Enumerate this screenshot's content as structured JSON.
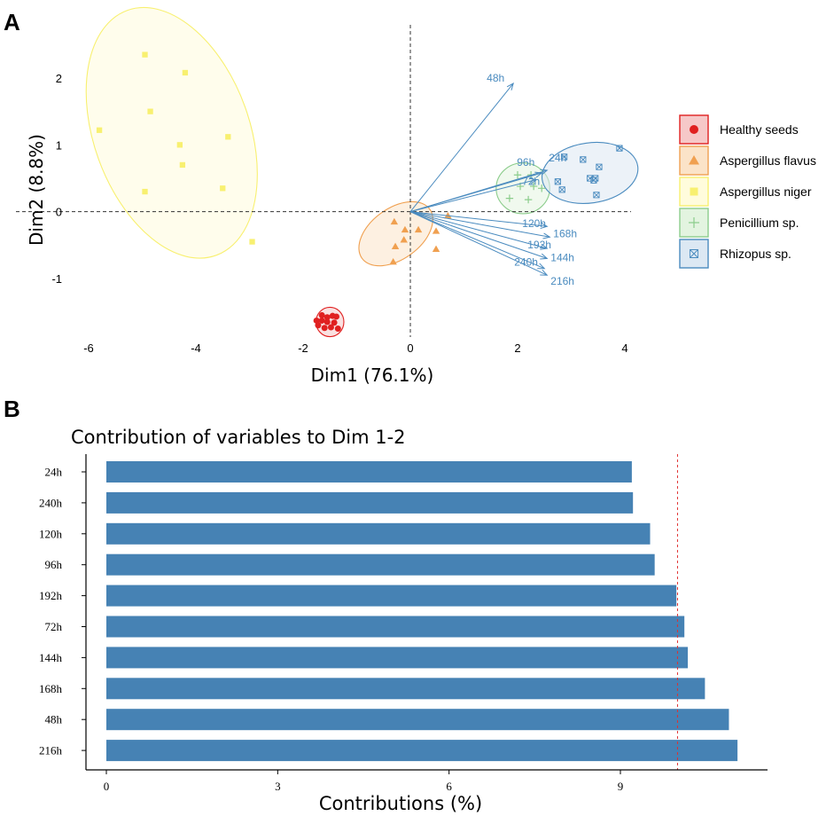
{
  "panel_a_label": "A",
  "panel_b_label": "B",
  "chart_data": [
    {
      "type": "scatter",
      "subtype": "pca-biplot",
      "xlabel": "Dim1 (76.1%)",
      "ylabel": "Dim2 (8.8%)",
      "xlim": [
        -6.4,
        4.6
      ],
      "ylim": [
        -2.0,
        2.55
      ],
      "xticks": [
        "-6",
        "-4",
        "-2",
        "0",
        "2",
        "4"
      ],
      "yticks": [
        "2",
        "1",
        "0",
        "-1"
      ],
      "xtick_values": [
        -6,
        -4,
        -2,
        0,
        2,
        4
      ],
      "ytick_values": [
        2,
        1,
        0,
        -1
      ],
      "legend_position": "right",
      "groups": [
        {
          "name": "Healthy seeds",
          "color": "#e02020",
          "fill": "#f6c8c8",
          "marker": "circle",
          "ellipse": {
            "cx": -1.5,
            "cy": -1.65,
            "rx": 0.26,
            "ry": 0.22,
            "angle": 0
          },
          "points": [
            [
              -1.65,
              -1.55
            ],
            [
              -1.55,
              -1.58
            ],
            [
              -1.45,
              -1.56
            ],
            [
              -1.38,
              -1.57
            ],
            [
              -1.72,
              -1.7
            ],
            [
              -1.6,
              -1.74
            ],
            [
              -1.48,
              -1.73
            ],
            [
              -1.35,
              -1.75
            ],
            [
              -1.65,
              -1.63
            ],
            [
              -1.42,
              -1.66
            ],
            [
              -1.55,
              -1.65
            ],
            [
              -1.75,
              -1.63
            ]
          ]
        },
        {
          "name": "Aspergillus flavus",
          "color": "#f0a050",
          "fill": "#fbe3c8",
          "marker": "triangle",
          "ellipse": {
            "cx": -0.27,
            "cy": -0.33,
            "rx": 0.78,
            "ry": 0.38,
            "angle": -36
          },
          "points": [
            [
              -0.3,
              -0.15
            ],
            [
              -0.1,
              -0.27
            ],
            [
              0.15,
              -0.27
            ],
            [
              0.48,
              -0.29
            ],
            [
              -0.12,
              -0.42
            ],
            [
              -0.28,
              -0.52
            ],
            [
              0.48,
              -0.56
            ],
            [
              -0.32,
              -0.75
            ],
            [
              0.7,
              -0.06
            ]
          ]
        },
        {
          "name": "Aspergillus niger",
          "color": "#f8f070",
          "fill": "#fffcdc",
          "marker": "square",
          "ellipse": {
            "cx": -4.45,
            "cy": 1.18,
            "rx": 1.45,
            "ry": 1.95,
            "angle": -20
          },
          "points": [
            [
              -4.95,
              2.35
            ],
            [
              -4.2,
              2.08
            ],
            [
              -5.8,
              1.22
            ],
            [
              -4.85,
              1.5
            ],
            [
              -4.3,
              1.0
            ],
            [
              -3.4,
              1.12
            ],
            [
              -4.25,
              0.7
            ],
            [
              -4.95,
              0.3
            ],
            [
              -3.5,
              0.35
            ],
            [
              -2.95,
              -0.45
            ]
          ]
        },
        {
          "name": "Penicillium sp.",
          "color": "#8ccd8c",
          "fill": "#e3f4e0",
          "marker": "plus",
          "ellipse": {
            "cx": 2.1,
            "cy": 0.35,
            "rx": 0.5,
            "ry": 0.38,
            "angle": 0
          },
          "points": [
            [
              2.05,
              0.38
            ],
            [
              2.3,
              0.38
            ],
            [
              2.45,
              0.35
            ],
            [
              2.2,
              0.18
            ],
            [
              1.85,
              0.2
            ],
            [
              2.25,
              0.55
            ],
            [
              2.0,
              0.55
            ]
          ]
        },
        {
          "name": "Rhizopus sp.",
          "color": "#4a8bbf",
          "fill": "#dce8f3",
          "marker": "boxx",
          "ellipse": {
            "cx": 3.35,
            "cy": 0.58,
            "rx": 0.9,
            "ry": 0.45,
            "angle": -8
          },
          "points": [
            [
              3.9,
              0.95
            ],
            [
              2.87,
              0.82
            ],
            [
              3.22,
              0.78
            ],
            [
              3.52,
              0.67
            ],
            [
              3.35,
              0.5
            ],
            [
              3.42,
              0.47
            ],
            [
              3.45,
              0.5
            ],
            [
              2.83,
              0.33
            ],
            [
              3.47,
              0.25
            ],
            [
              2.75,
              0.45
            ]
          ]
        }
      ],
      "arrows": [
        {
          "label": "48h",
          "x": 1.92,
          "y": 1.92
        },
        {
          "label": "24h",
          "x": 2.55,
          "y": 0.62
        },
        {
          "label": "96h",
          "x": 2.45,
          "y": 0.58
        },
        {
          "label": "72h",
          "x": 2.35,
          "y": 0.48
        },
        {
          "label": "120h",
          "x": 2.55,
          "y": -0.22
        },
        {
          "label": "168h",
          "x": 2.6,
          "y": -0.38
        },
        {
          "label": "192h",
          "x": 2.55,
          "y": -0.55
        },
        {
          "label": "144h",
          "x": 2.55,
          "y": -0.7
        },
        {
          "label": "240h",
          "x": 2.5,
          "y": -0.85
        },
        {
          "label": "216h",
          "x": 2.55,
          "y": -0.95
        }
      ]
    },
    {
      "type": "bar",
      "orientation": "horizontal",
      "title": "Contribution of variables to Dim 1-2",
      "xlabel": "Contributions (%)",
      "ylabel": "",
      "xlim": [
        -0.25,
        11.5
      ],
      "xticks": [
        "0",
        "3",
        "6",
        "9"
      ],
      "xtick_values": [
        0,
        3,
        6,
        9
      ],
      "reference_line": 10.0,
      "bar_color": "#4682b4",
      "reference_color": "#e03030",
      "categories": [
        "24h",
        "240h",
        "120h",
        "96h",
        "192h",
        "72h",
        "144h",
        "168h",
        "48h",
        "216h"
      ],
      "values": [
        9.2,
        9.22,
        9.52,
        9.6,
        9.98,
        10.12,
        10.18,
        10.48,
        10.9,
        11.05
      ]
    }
  ]
}
